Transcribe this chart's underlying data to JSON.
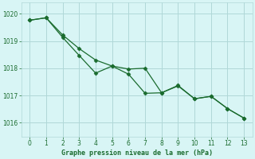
{
  "line1_x": [
    0,
    1,
    2,
    3,
    4,
    5,
    6,
    7,
    8,
    9,
    10,
    11,
    12,
    13
  ],
  "line1_y": [
    1019.76,
    1019.85,
    1019.13,
    1018.47,
    1017.82,
    1018.08,
    1017.78,
    1017.08,
    1017.1,
    1017.37,
    1016.88,
    1016.97,
    1016.52,
    1016.17
  ],
  "line2_x": [
    0,
    1,
    2,
    3,
    4,
    5,
    6,
    7,
    8,
    9,
    10,
    11,
    12,
    13
  ],
  "line2_y": [
    1019.76,
    1019.85,
    1019.22,
    1018.72,
    1018.3,
    1018.08,
    1017.97,
    1018.0,
    1017.1,
    1017.35,
    1016.88,
    1016.97,
    1016.52,
    1016.17
  ],
  "line_color": "#1a6b2e",
  "bg_color": "#d8f5f5",
  "grid_color": "#b0d8d8",
  "text_color": "#1a6b2e",
  "xlabel": "Graphe pression niveau de la mer (hPa)",
  "ylim": [
    1015.5,
    1020.4
  ],
  "xlim": [
    -0.5,
    13.5
  ],
  "yticks": [
    1016,
    1017,
    1018,
    1019,
    1020
  ],
  "xticks": [
    0,
    1,
    2,
    3,
    4,
    5,
    6,
    7,
    8,
    9,
    10,
    11,
    12,
    13
  ]
}
